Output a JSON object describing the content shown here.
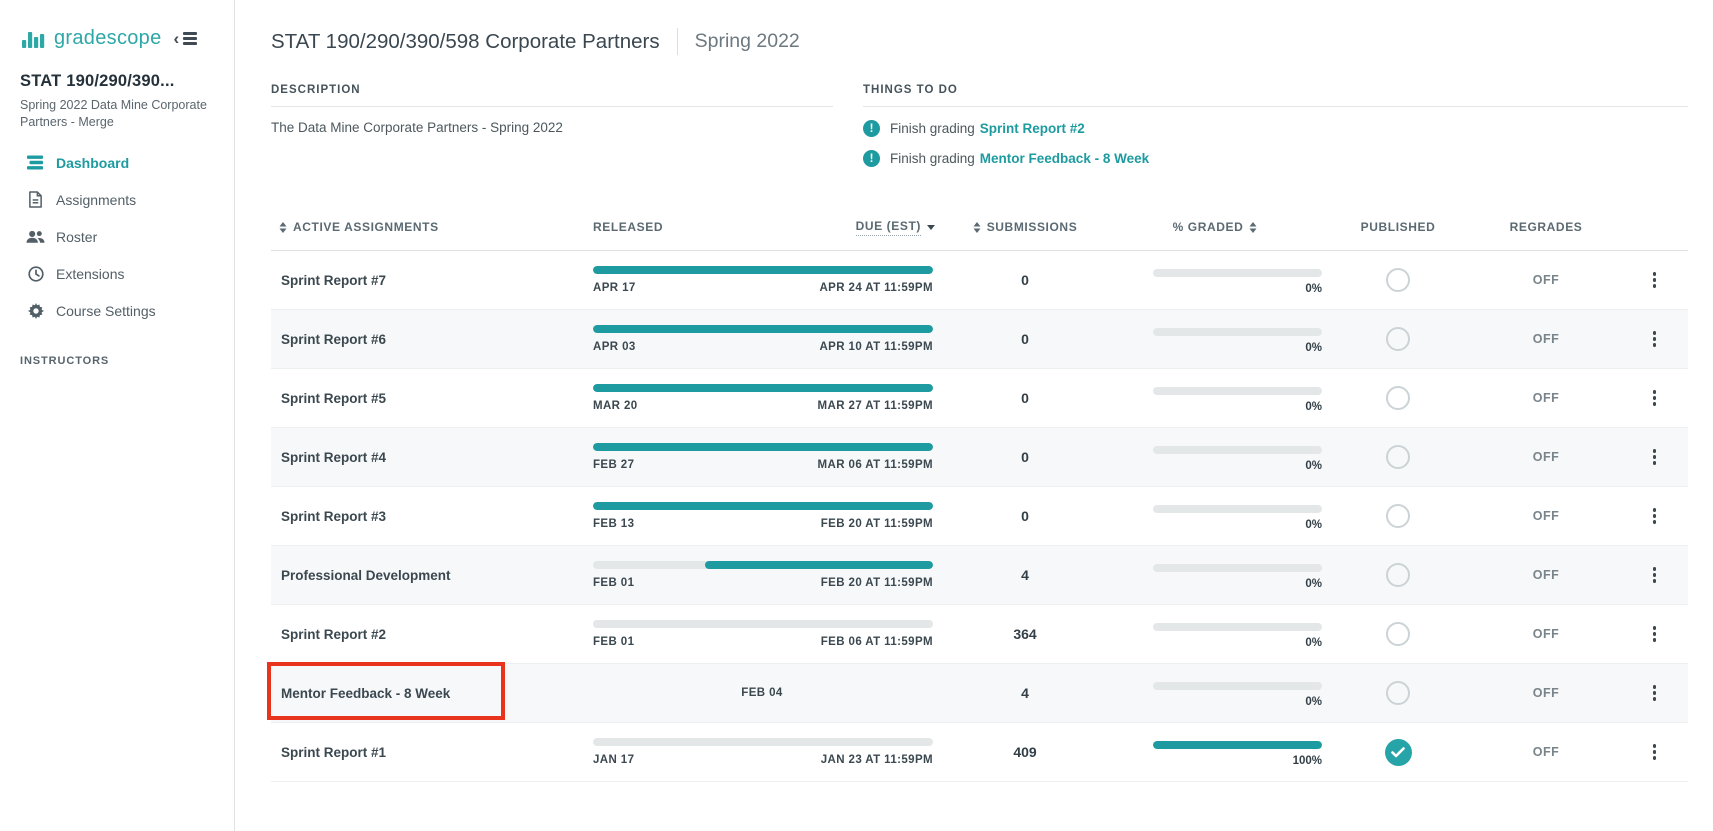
{
  "colors": {
    "teal": "#1d9ba0",
    "logo_teal": "#2ea7a7",
    "annotation_red": "#e8341c"
  },
  "app": {
    "logo_text": "gradescope"
  },
  "sidebar": {
    "course_code": "STAT 190/290/390...",
    "course_subtitle": "Spring 2022 Data Mine Corporate Partners - Merge",
    "nav": [
      {
        "label": "Dashboard",
        "icon": "dashboard-icon",
        "active": true
      },
      {
        "label": "Assignments",
        "icon": "assignments-icon",
        "active": false
      },
      {
        "label": "Roster",
        "icon": "roster-icon",
        "active": false
      },
      {
        "label": "Extensions",
        "icon": "extensions-icon",
        "active": false
      },
      {
        "label": "Course Settings",
        "icon": "settings-icon",
        "active": false
      }
    ],
    "section_header": "INSTRUCTORS"
  },
  "header": {
    "title": "STAT 190/290/390/598 Corporate Partners",
    "term": "Spring 2022"
  },
  "description": {
    "label": "DESCRIPTION",
    "text": "The Data Mine Corporate Partners - Spring 2022"
  },
  "todo": {
    "label": "THINGS TO DO",
    "items": [
      {
        "prefix": "Finish grading",
        "link": "Sprint Report #2"
      },
      {
        "prefix": "Finish grading",
        "link": "Mentor Feedback - 8 Week"
      }
    ]
  },
  "table": {
    "columns": {
      "assignments": "ACTIVE ASSIGNMENTS",
      "released": "RELEASED",
      "due": "DUE (EST)",
      "submissions": "SUBMISSIONS",
      "graded": "% GRADED",
      "published": "PUBLISHED",
      "regrades": "REGRADES"
    },
    "rows": [
      {
        "name": "Sprint Report #7",
        "released": "APR 17",
        "due": "APR 24 AT 11:59PM",
        "timeline": {
          "type": "open"
        },
        "submissions": "0",
        "graded_pct": 0,
        "graded_label": "0%",
        "published": false,
        "regrades": "OFF",
        "highlighted": false
      },
      {
        "name": "Sprint Report #6",
        "released": "APR 03",
        "due": "APR 10 AT 11:59PM",
        "timeline": {
          "type": "open"
        },
        "submissions": "0",
        "graded_pct": 0,
        "graded_label": "0%",
        "published": false,
        "regrades": "OFF",
        "highlighted": false
      },
      {
        "name": "Sprint Report #5",
        "released": "MAR 20",
        "due": "MAR 27 AT 11:59PM",
        "timeline": {
          "type": "open"
        },
        "submissions": "0",
        "graded_pct": 0,
        "graded_label": "0%",
        "published": false,
        "regrades": "OFF",
        "highlighted": false
      },
      {
        "name": "Sprint Report #4",
        "released": "FEB 27",
        "due": "MAR 06 AT 11:59PM",
        "timeline": {
          "type": "open"
        },
        "submissions": "0",
        "graded_pct": 0,
        "graded_label": "0%",
        "published": false,
        "regrades": "OFF",
        "highlighted": false
      },
      {
        "name": "Sprint Report #3",
        "released": "FEB 13",
        "due": "FEB 20 AT 11:59PM",
        "timeline": {
          "type": "open"
        },
        "submissions": "0",
        "graded_pct": 0,
        "graded_label": "0%",
        "published": false,
        "regrades": "OFF",
        "highlighted": false
      },
      {
        "name": "Professional Development",
        "released": "FEB 01",
        "due": "FEB 20 AT 11:59PM",
        "timeline": {
          "type": "split",
          "teal_from": 33
        },
        "submissions": "4",
        "graded_pct": 0,
        "graded_label": "0%",
        "published": false,
        "regrades": "OFF",
        "highlighted": false
      },
      {
        "name": "Sprint Report #2",
        "released": "FEB 01",
        "due": "FEB 06 AT 11:59PM",
        "timeline": {
          "type": "closed"
        },
        "submissions": "364",
        "graded_pct": 0,
        "graded_label": "0%",
        "published": false,
        "regrades": "OFF",
        "highlighted": false
      },
      {
        "name": "Mentor Feedback - 8 Week",
        "released": "FEB 04",
        "due": "",
        "timeline": {
          "type": "date-only"
        },
        "submissions": "4",
        "graded_pct": 0,
        "graded_label": "0%",
        "published": false,
        "regrades": "OFF",
        "highlighted": true
      },
      {
        "name": "Sprint Report #1",
        "released": "JAN 17",
        "due": "JAN 23 AT 11:59PM",
        "timeline": {
          "type": "closed"
        },
        "submissions": "409",
        "graded_pct": 100,
        "graded_label": "100%",
        "published": true,
        "regrades": "OFF",
        "highlighted": false
      }
    ]
  }
}
